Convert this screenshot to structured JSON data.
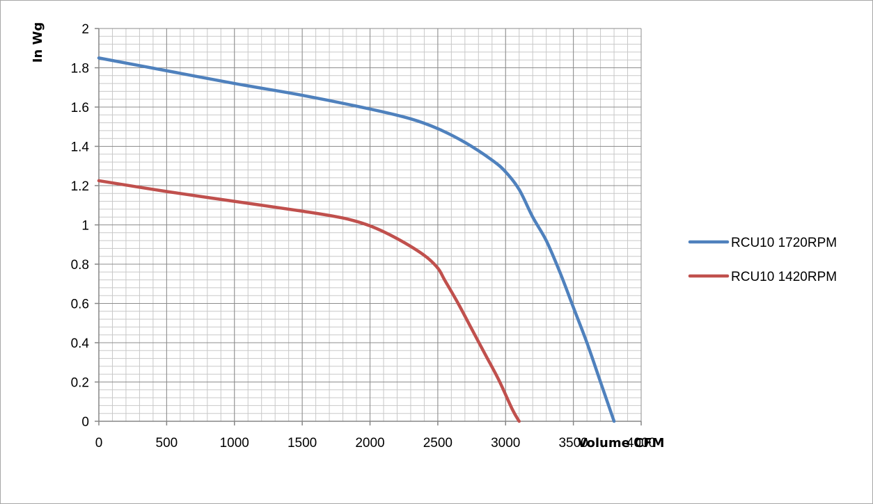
{
  "chart_data": {
    "type": "line",
    "xlabel": "Volume CFM",
    "ylabel": "In Wg",
    "xlim": [
      0,
      4000
    ],
    "ylim": [
      0,
      2
    ],
    "xticks": [
      0,
      500,
      1000,
      1500,
      2000,
      2500,
      3000,
      3500,
      4000
    ],
    "yticks": [
      0,
      0.2,
      0.4,
      0.6,
      0.8,
      1,
      1.2,
      1.4,
      1.6,
      1.8,
      2
    ],
    "xtick_labels": [
      "0",
      "500",
      "1000",
      "1500",
      "2000",
      "2500",
      "3000",
      "3500",
      "4000"
    ],
    "ytick_labels": [
      "0",
      "0.2",
      "0.4",
      "0.6",
      "0.8",
      "1",
      "1.2",
      "1.4",
      "1.6",
      "1.8",
      "2"
    ],
    "grid": true,
    "legend": "right",
    "series": [
      {
        "name": "RCU10 1720RPM",
        "color": "#4f81bd",
        "x": [
          0,
          500,
          1000,
          1500,
          2000,
          2300,
          2500,
          2700,
          2900,
          3000,
          3100,
          3200,
          3300,
          3400,
          3500,
          3600,
          3700,
          3800
        ],
        "y": [
          1.85,
          1.785,
          1.72,
          1.66,
          1.59,
          1.54,
          1.49,
          1.42,
          1.33,
          1.27,
          1.18,
          1.04,
          0.92,
          0.76,
          0.58,
          0.4,
          0.2,
          0
        ]
      },
      {
        "name": "RCU10 1420RPM",
        "color": "#c0504d",
        "x": [
          0,
          500,
          1000,
          1500,
          1800,
          2000,
          2200,
          2400,
          2500,
          2550,
          2650,
          2750,
          2850,
          2950,
          3050,
          3100
        ],
        "y": [
          1.225,
          1.17,
          1.12,
          1.07,
          1.035,
          0.995,
          0.93,
          0.845,
          0.78,
          0.72,
          0.6,
          0.47,
          0.34,
          0.21,
          0.06,
          0
        ]
      }
    ]
  }
}
